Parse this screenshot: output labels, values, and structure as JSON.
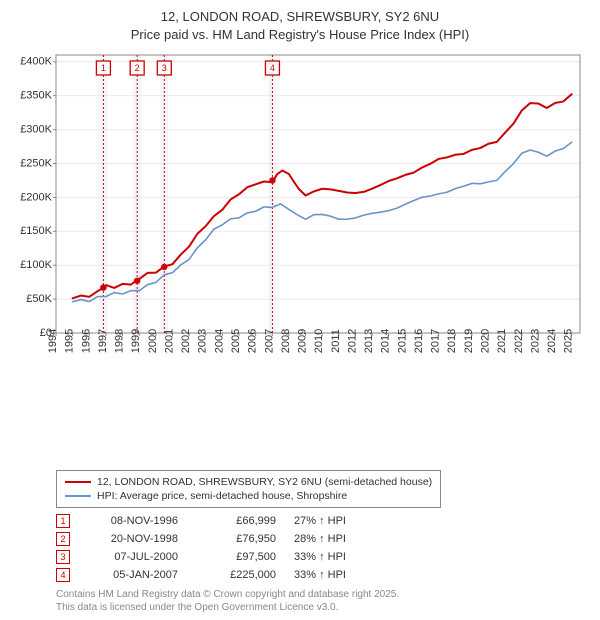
{
  "title_line1": "12, LONDON ROAD, SHREWSBURY, SY2 6NU",
  "title_line2": "Price paid vs. HM Land Registry's House Price Index (HPI)",
  "chart": {
    "type": "line",
    "background_color": "#ffffff",
    "grid_color": "#e9e9e9",
    "axis_color": "#888888",
    "x_range": [
      1994,
      2025.5
    ],
    "x_ticks": [
      1994,
      1995,
      1996,
      1997,
      1998,
      1999,
      2000,
      2001,
      2002,
      2003,
      2004,
      2005,
      2006,
      2007,
      2008,
      2009,
      2010,
      2011,
      2012,
      2013,
      2014,
      2015,
      2016,
      2017,
      2018,
      2019,
      2020,
      2021,
      2022,
      2023,
      2024,
      2025
    ],
    "y_range": [
      0,
      410000
    ],
    "y_ticks": [
      0,
      50000,
      100000,
      150000,
      200000,
      250000,
      300000,
      350000,
      400000
    ],
    "y_tick_labels": [
      "£0",
      "£50K",
      "£100K",
      "£150K",
      "£200K",
      "£250K",
      "£300K",
      "£350K",
      "£400K"
    ],
    "price_series": {
      "label": "12, LONDON ROAD, SHREWSBURY, SY2 6NU (semi-detached house)",
      "color": "#cc0000",
      "width": 2.0,
      "data": [
        [
          1995.0,
          53000
        ],
        [
          1995.5,
          55000
        ],
        [
          1996.0,
          57000
        ],
        [
          1996.5,
          60000
        ],
        [
          1996.85,
          66999
        ],
        [
          1997.0,
          67000
        ],
        [
          1997.5,
          68000
        ],
        [
          1998.0,
          72000
        ],
        [
          1998.5,
          75000
        ],
        [
          1998.88,
          76950
        ],
        [
          1999.0,
          80000
        ],
        [
          1999.5,
          85000
        ],
        [
          2000.0,
          90000
        ],
        [
          2000.5,
          97500
        ],
        [
          2001.0,
          105000
        ],
        [
          2001.5,
          115000
        ],
        [
          2002.0,
          128000
        ],
        [
          2002.5,
          143000
        ],
        [
          2003.0,
          158000
        ],
        [
          2003.5,
          172000
        ],
        [
          2004.0,
          185000
        ],
        [
          2004.5,
          197000
        ],
        [
          2005.0,
          205000
        ],
        [
          2005.5,
          212000
        ],
        [
          2006.0,
          219000
        ],
        [
          2006.5,
          223000
        ],
        [
          2007.0,
          225000
        ],
        [
          2007.3,
          235000
        ],
        [
          2007.6,
          240000
        ],
        [
          2008.0,
          232000
        ],
        [
          2008.3,
          222000
        ],
        [
          2008.6,
          212000
        ],
        [
          2009.0,
          205000
        ],
        [
          2009.5,
          210000
        ],
        [
          2010.0,
          213000
        ],
        [
          2010.5,
          210000
        ],
        [
          2011.0,
          208000
        ],
        [
          2011.5,
          207000
        ],
        [
          2012.0,
          208000
        ],
        [
          2012.5,
          210000
        ],
        [
          2013.0,
          213000
        ],
        [
          2013.5,
          217000
        ],
        [
          2014.0,
          222000
        ],
        [
          2014.5,
          228000
        ],
        [
          2015.0,
          234000
        ],
        [
          2015.5,
          239000
        ],
        [
          2016.0,
          244000
        ],
        [
          2016.5,
          249000
        ],
        [
          2017.0,
          254000
        ],
        [
          2017.5,
          259000
        ],
        [
          2018.0,
          263000
        ],
        [
          2018.5,
          267000
        ],
        [
          2019.0,
          270000
        ],
        [
          2019.5,
          273000
        ],
        [
          2020.0,
          276000
        ],
        [
          2020.5,
          282000
        ],
        [
          2021.0,
          295000
        ],
        [
          2021.5,
          312000
        ],
        [
          2022.0,
          328000
        ],
        [
          2022.5,
          340000
        ],
        [
          2023.0,
          335000
        ],
        [
          2023.5,
          332000
        ],
        [
          2024.0,
          338000
        ],
        [
          2024.5,
          345000
        ],
        [
          2025.0,
          352000
        ]
      ]
    },
    "hpi_series": {
      "label": "HPI: Average price, semi-detached house, Shropshire",
      "color": "#6b93c9",
      "width": 1.6,
      "data": [
        [
          1995.0,
          48000
        ],
        [
          1995.5,
          49000
        ],
        [
          1996.0,
          50000
        ],
        [
          1996.5,
          52000
        ],
        [
          1997.0,
          54000
        ],
        [
          1997.5,
          56000
        ],
        [
          1998.0,
          59000
        ],
        [
          1998.5,
          62000
        ],
        [
          1999.0,
          66000
        ],
        [
          1999.5,
          70000
        ],
        [
          2000.0,
          75000
        ],
        [
          2000.5,
          82000
        ],
        [
          2001.0,
          90000
        ],
        [
          2001.5,
          100000
        ],
        [
          2002.0,
          112000
        ],
        [
          2002.5,
          125000
        ],
        [
          2003.0,
          138000
        ],
        [
          2003.5,
          150000
        ],
        [
          2004.0,
          160000
        ],
        [
          2004.5,
          168000
        ],
        [
          2005.0,
          173000
        ],
        [
          2005.5,
          177000
        ],
        [
          2006.0,
          180000
        ],
        [
          2006.5,
          183000
        ],
        [
          2007.0,
          185000
        ],
        [
          2007.5,
          190000
        ],
        [
          2008.0,
          185000
        ],
        [
          2008.5,
          175000
        ],
        [
          2009.0,
          168000
        ],
        [
          2009.5,
          172000
        ],
        [
          2010.0,
          174000
        ],
        [
          2010.5,
          172000
        ],
        [
          2011.0,
          170000
        ],
        [
          2011.5,
          169000
        ],
        [
          2012.0,
          170000
        ],
        [
          2012.5,
          172000
        ],
        [
          2013.0,
          175000
        ],
        [
          2013.5,
          178000
        ],
        [
          2014.0,
          182000
        ],
        [
          2014.5,
          186000
        ],
        [
          2015.0,
          190000
        ],
        [
          2015.5,
          194000
        ],
        [
          2016.0,
          198000
        ],
        [
          2016.5,
          202000
        ],
        [
          2017.0,
          206000
        ],
        [
          2017.5,
          210000
        ],
        [
          2018.0,
          213000
        ],
        [
          2018.5,
          216000
        ],
        [
          2019.0,
          218000
        ],
        [
          2019.5,
          220000
        ],
        [
          2020.0,
          223000
        ],
        [
          2020.5,
          228000
        ],
        [
          2021.0,
          238000
        ],
        [
          2021.5,
          250000
        ],
        [
          2022.0,
          262000
        ],
        [
          2022.5,
          270000
        ],
        [
          2023.0,
          266000
        ],
        [
          2023.5,
          264000
        ],
        [
          2024.0,
          268000
        ],
        [
          2024.5,
          273000
        ],
        [
          2025.0,
          278000
        ]
      ]
    },
    "sale_markers": [
      {
        "n": "1",
        "x": 1996.85,
        "y": 66999
      },
      {
        "n": "2",
        "x": 1998.88,
        "y": 76950
      },
      {
        "n": "3",
        "x": 2000.51,
        "y": 97500
      },
      {
        "n": "4",
        "x": 2007.01,
        "y": 225000
      }
    ],
    "marker_band_color": "#f2f4f9",
    "marker_line_color": "#cc0000",
    "marker_line_dash": "2,2",
    "marker_box_stroke": "#cc0000",
    "marker_box_fill": "#ffffff",
    "marker_box_size": 14,
    "marker_point_radius": 3.2
  },
  "legend": {
    "series1_label": "12, LONDON ROAD, SHREWSBURY, SY2 6NU (semi-detached house)",
    "series2_label": "HPI: Average price, semi-detached house, Shropshire",
    "series1_color": "#cc0000",
    "series2_color": "#6b93c9"
  },
  "sales": [
    {
      "n": "1",
      "date": "08-NOV-1996",
      "price": "£66,999",
      "pct": "27% ↑ HPI"
    },
    {
      "n": "2",
      "date": "20-NOV-1998",
      "price": "£76,950",
      "pct": "28% ↑ HPI"
    },
    {
      "n": "3",
      "date": "07-JUL-2000",
      "price": "£97,500",
      "pct": "33% ↑ HPI"
    },
    {
      "n": "4",
      "date": "05-JAN-2007",
      "price": "£225,000",
      "pct": "33% ↑ HPI"
    }
  ],
  "attribution_line1": "Contains HM Land Registry data © Crown copyright and database right 2025.",
  "attribution_line2": "This data is licensed under the Open Government Licence v3.0."
}
